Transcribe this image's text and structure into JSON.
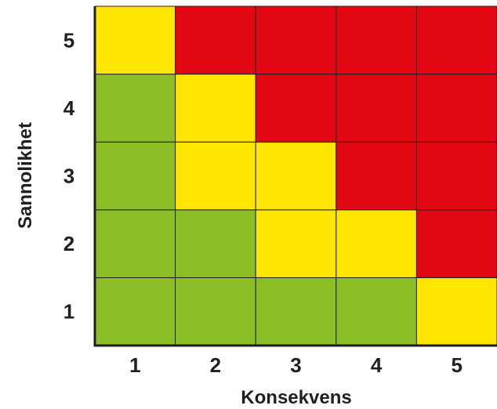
{
  "chart_data": {
    "type": "heatmap",
    "title": "",
    "xlabel": "Konsekvens",
    "ylabel": "Sannolikhet",
    "x_categories": [
      "1",
      "2",
      "3",
      "4",
      "5"
    ],
    "y_categories": [
      "1",
      "2",
      "3",
      "4",
      "5"
    ],
    "colors": {
      "green": "#8cbf26",
      "yellow": "#ffe600",
      "red": "#e30613"
    },
    "cells": [
      [
        "green",
        "green",
        "green",
        "green",
        "yellow"
      ],
      [
        "green",
        "green",
        "yellow",
        "yellow",
        "red"
      ],
      [
        "green",
        "yellow",
        "yellow",
        "red",
        "red"
      ],
      [
        "green",
        "yellow",
        "red",
        "red",
        "red"
      ],
      [
        "yellow",
        "red",
        "red",
        "red",
        "red"
      ]
    ],
    "grid": true,
    "legend": "none"
  }
}
